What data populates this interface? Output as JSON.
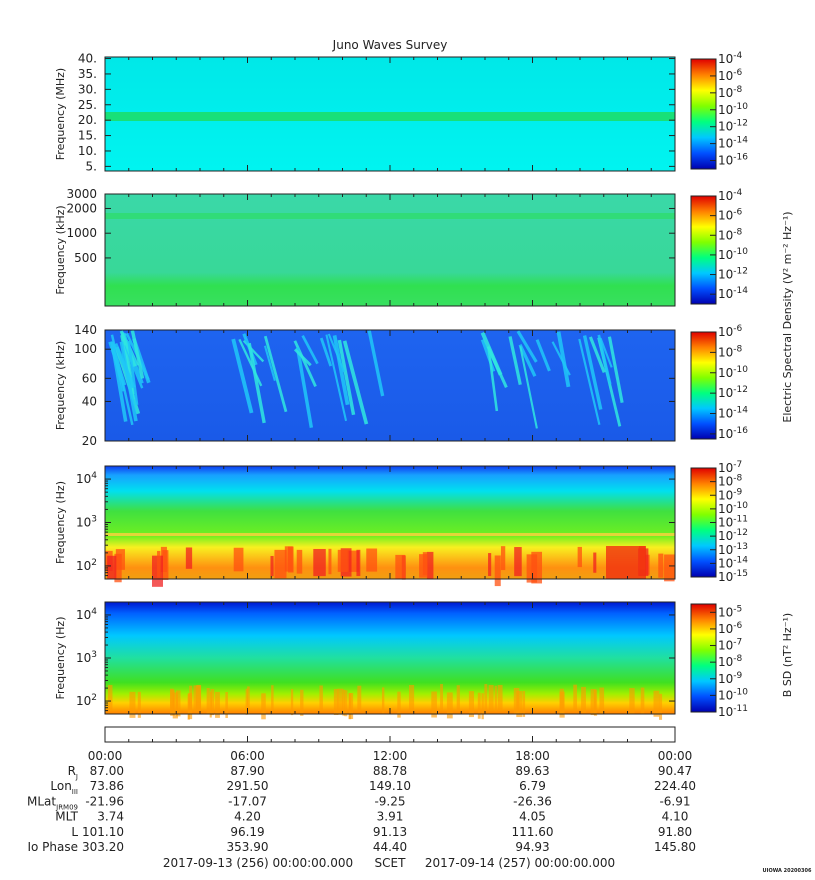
{
  "title": "Juno Waves Survey",
  "footer": {
    "start": "2017-09-13 (256) 00:00:00.000",
    "scet": "SCET",
    "end": "2017-09-14 (257) 00:00:00.000",
    "stamp": "UIOWA 20200306"
  },
  "ephemeris": {
    "times": [
      "00:00",
      "06:00",
      "12:00",
      "18:00",
      "00:00"
    ],
    "rows": [
      {
        "label": "R",
        "sub": "J",
        "values": [
          "87.00",
          "87.90",
          "88.78",
          "89.63",
          "90.47"
        ]
      },
      {
        "label": "Lon",
        "sub": "III",
        "values": [
          "73.86",
          "291.50",
          "149.10",
          "6.79",
          "224.40"
        ]
      },
      {
        "label": "MLat",
        "sub": "JRM09",
        "values": [
          "-21.96",
          "-17.07",
          "-9.25",
          "-26.36",
          "-6.91"
        ]
      },
      {
        "label": "MLT",
        "sub": "",
        "values": [
          "3.74",
          "4.20",
          "3.91",
          "4.05",
          "4.10"
        ]
      },
      {
        "label": "L",
        "sub": "",
        "values": [
          "101.10",
          "96.19",
          "91.13",
          "111.60",
          "91.80"
        ]
      },
      {
        "label": "Io Phase",
        "sub": "",
        "values": [
          "303.20",
          "353.90",
          "44.40",
          "94.93",
          "145.80"
        ]
      }
    ]
  },
  "colorbar_labels": {
    "electric": "Electric Spectral Density (V² m⁻² Hz⁻¹)",
    "magnetic": "B SD (nT² Hz⁻¹)"
  },
  "colors": {
    "background_hf": "#00f0f0",
    "background_mf": "#3cd6a0",
    "background_lf": "#1e64f0",
    "background_vlf": "#30d030",
    "colormap": [
      "#0000b0",
      "#0050ff",
      "#00c8ff",
      "#00ff80",
      "#80ff00",
      "#ffff00",
      "#ff8000",
      "#e00000"
    ]
  },
  "chart_data": [
    {
      "type": "heatmap",
      "panel": "HFR high",
      "ylabel": "Frequency (MHz)",
      "yscale": "linear",
      "ylim": [
        3.5,
        40.5
      ],
      "yticks": [
        "5.",
        "10.",
        "15.",
        "20.",
        "25.",
        "30.",
        "35.",
        "40."
      ],
      "ytick_values": [
        5,
        10,
        15,
        20,
        25,
        30,
        35,
        40
      ],
      "colorbar": {
        "scale": "log",
        "range": [
          -17,
          -4
        ],
        "ticks": [
          -4,
          -6,
          -8,
          -10,
          -12,
          -14,
          -16
        ]
      }
    },
    {
      "type": "heatmap",
      "panel": "HFR low",
      "ylabel": "Frequency (kHz)",
      "yscale": "log",
      "ylim": [
        130,
        3000
      ],
      "yticks": [
        "3000",
        "2000",
        "1000",
        "500"
      ],
      "ytick_values": [
        3000,
        2000,
        1000,
        500
      ],
      "colorbar": {
        "scale": "log",
        "range": [
          -15,
          -4
        ],
        "ticks": [
          -4,
          -6,
          -8,
          -10,
          -12,
          -14
        ]
      }
    },
    {
      "type": "heatmap",
      "panel": "LFR high",
      "ylabel": "Frequency (kHz)",
      "yscale": "log",
      "ylim": [
        20,
        140
      ],
      "yticks": [
        "140",
        "100",
        "60",
        "40",
        "20"
      ],
      "ytick_values": [
        140,
        100,
        60,
        40,
        20
      ],
      "colorbar": {
        "scale": "log",
        "range": [
          -16.5,
          -6
        ],
        "ticks": [
          -6,
          -8,
          -10,
          -12,
          -14,
          -16
        ]
      }
    },
    {
      "type": "heatmap",
      "panel": "LFR low E",
      "ylabel": "Frequency (Hz)",
      "yscale": "log",
      "ylim": [
        50,
        20000
      ],
      "yticks": [
        "10^4",
        "10^3",
        "10^2"
      ],
      "ytick_values": [
        10000,
        1000,
        100
      ],
      "colorbar": {
        "scale": "log",
        "range": [
          -15,
          -7
        ],
        "ticks": [
          -7,
          -8,
          -9,
          -10,
          -11,
          -12,
          -13,
          -14,
          -15
        ]
      }
    },
    {
      "type": "heatmap",
      "panel": "LFR low B",
      "ylabel": "Frequency (Hz)",
      "yscale": "log",
      "ylim": [
        50,
        20000
      ],
      "yticks": [
        "10^4",
        "10^3",
        "10^2"
      ],
      "ytick_values": [
        10000,
        1000,
        100
      ],
      "colorbar": {
        "scale": "log",
        "range": [
          -11,
          -4.5
        ],
        "ticks": [
          -5,
          -6,
          -7,
          -8,
          -9,
          -10,
          -11
        ]
      }
    }
  ]
}
